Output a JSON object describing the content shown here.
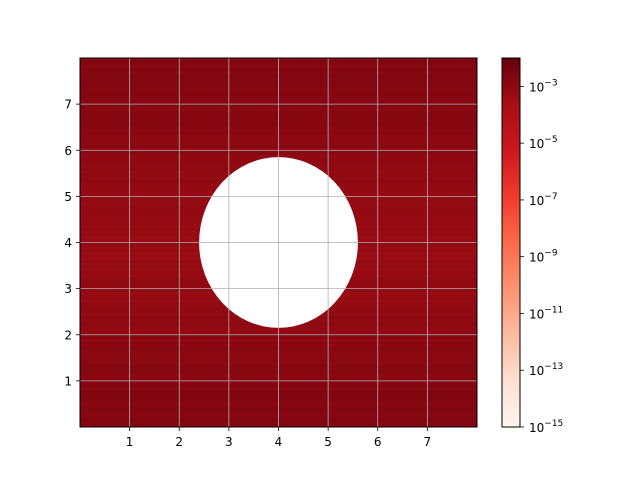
{
  "chart_data": {
    "type": "heatmap",
    "title": "",
    "xlabel": "",
    "ylabel": "",
    "xlim": [
      0,
      8
    ],
    "ylim": [
      0,
      8
    ],
    "x_ticks": [
      "1",
      "2",
      "3",
      "4",
      "5",
      "6",
      "7"
    ],
    "y_ticks": [
      "1",
      "2",
      "3",
      "4",
      "5",
      "6",
      "7"
    ],
    "grid": true,
    "cmap": "Reds",
    "colorbar": {
      "scale": "log",
      "range": [
        1e-15,
        0.01
      ],
      "ticks": [
        {
          "base": "10",
          "exp": "−15"
        },
        {
          "base": "10",
          "exp": "−13"
        },
        {
          "base": "10",
          "exp": "−11"
        },
        {
          "base": "10",
          "exp": "−9"
        },
        {
          "base": "10",
          "exp": "−7"
        },
        {
          "base": "10",
          "exp": "−5"
        },
        {
          "base": "10",
          "exp": "−3"
        }
      ]
    },
    "masked_region": {
      "shape": "circle",
      "center": [
        4.0,
        4.0
      ],
      "radius_x": 1.6,
      "radius_y": 1.85
    },
    "field_log_range": [
      -3.8,
      -2.6
    ]
  }
}
